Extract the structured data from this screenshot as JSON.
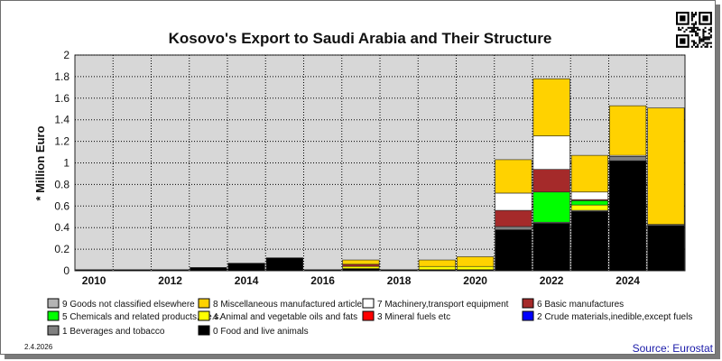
{
  "chart_data": {
    "type": "bar",
    "stacked": true,
    "title": "Kosovo's Export to Saudi Arabia and Their Structure",
    "ylabel": "* Million Euro",
    "xlabel": "",
    "ylim": [
      0,
      2
    ],
    "yticks": [
      "0",
      "0.2",
      "0.4",
      "0.6",
      "0.8",
      "1",
      "1.2",
      "1.4",
      "1.6",
      "1.8",
      "2"
    ],
    "years": [
      2010,
      2011,
      2012,
      2013,
      2014,
      2015,
      2016,
      2017,
      2018,
      2019,
      2020,
      2021,
      2022,
      2023,
      2024,
      2025
    ],
    "xtick_labels": [
      "2010",
      "2012",
      "2014",
      "2016",
      "2018",
      "2020",
      "2022",
      "2024"
    ],
    "grid": true,
    "legend_position": "bottom",
    "series": [
      {
        "name": "0 Food and live animals",
        "color": "#000000",
        "values": [
          0.01,
          0.01,
          0.01,
          0.03,
          0.07,
          0.12,
          0.01,
          0.02,
          0.01,
          0.01,
          0.01,
          0.38,
          0.44,
          0.55,
          1.02,
          0.42
        ]
      },
      {
        "name": "1 Beverages and tobacco",
        "color": "#808080",
        "values": [
          0,
          0,
          0,
          0,
          0,
          0,
          0,
          0,
          0,
          0,
          0,
          0.03,
          0.01,
          0.01,
          0.04,
          0.01
        ]
      },
      {
        "name": "2 Crude materials,inedible,except fuels",
        "color": "#0000ff",
        "values": [
          0,
          0,
          0,
          0,
          0,
          0,
          0,
          0,
          0,
          0,
          0,
          0,
          0,
          0,
          0,
          0
        ]
      },
      {
        "name": "3 Mineral fuels etc",
        "color": "#ff0000",
        "values": [
          0,
          0,
          0,
          0,
          0,
          0,
          0,
          0,
          0,
          0,
          0,
          0,
          0,
          0,
          0,
          0
        ]
      },
      {
        "name": "4 Animal and vegetable oils and fats",
        "color": "#ffff00",
        "values": [
          0,
          0,
          0,
          0,
          0,
          0,
          0,
          0.02,
          0,
          0.03,
          0.03,
          0,
          0,
          0.05,
          0,
          0
        ]
      },
      {
        "name": "5 Chemicals and related products,n.e.s.",
        "color": "#00ff00",
        "values": [
          0,
          0,
          0,
          0,
          0,
          0,
          0,
          0,
          0,
          0,
          0,
          0,
          0.28,
          0.04,
          0,
          0
        ]
      },
      {
        "name": "6 Basic manufactures",
        "color": "#a52a2a",
        "values": [
          0,
          0,
          0,
          0,
          0,
          0,
          0,
          0.02,
          0,
          0,
          0,
          0.15,
          0.21,
          0.01,
          0,
          0
        ]
      },
      {
        "name": "7 Machinery,transport equipment",
        "color": "#ffffff",
        "values": [
          0,
          0,
          0,
          0,
          0,
          0,
          0,
          0,
          0,
          0,
          0,
          0.16,
          0.31,
          0.07,
          0.01,
          0
        ]
      },
      {
        "name": "8 Miscellaneous manufactured articles",
        "color": "#ffd200",
        "values": [
          0,
          0,
          0,
          0,
          0,
          0,
          0,
          0.04,
          0,
          0.06,
          0.09,
          0.31,
          0.53,
          0.34,
          0.46,
          1.08
        ]
      },
      {
        "name": "9 Goods not classified elsewhere",
        "color": "#b4b4b4",
        "values": [
          0,
          0,
          0,
          0,
          0,
          0,
          0,
          0,
          0,
          0,
          0,
          0,
          0,
          0,
          0,
          0
        ]
      }
    ],
    "legend_order": [
      9,
      8,
      7,
      6,
      5,
      4,
      3,
      2,
      1,
      0
    ]
  },
  "footer": {
    "date": "2.4.2026",
    "source": "Source: Eurostat"
  },
  "qr_icon": "qr-code-icon"
}
